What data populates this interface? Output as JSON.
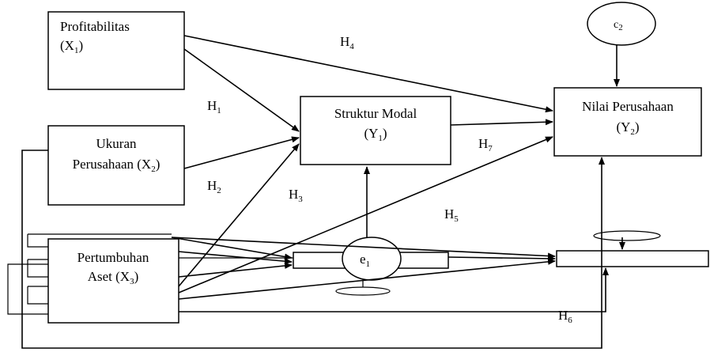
{
  "nodes": {
    "x1": {
      "name": "Profitabilitas",
      "var": "(X",
      "sub": "1",
      "close": ")"
    },
    "x2": {
      "name1": "Ukuran",
      "name2": "Perusahaan (X",
      "sub": "2",
      "close": ")"
    },
    "x3": {
      "name1": "Pertumbuhan",
      "name2": "Aset (X",
      "sub": "3",
      "close": ")"
    },
    "y1": {
      "name": "Struktur Modal",
      "var": "(Y",
      "sub": "1",
      "close": ")"
    },
    "y2": {
      "name": "Nilai Perusahaan",
      "var": "(Y",
      "sub": "2",
      "close": ")"
    },
    "e1": {
      "var": "e",
      "sub": "1"
    },
    "e2": {
      "var": "c",
      "sub": "2"
    }
  },
  "hypotheses": {
    "h1": {
      "var": "H",
      "sub": "1"
    },
    "h2": {
      "var": "H",
      "sub": "2"
    },
    "h3": {
      "var": "H",
      "sub": "3"
    },
    "h4": {
      "var": "H",
      "sub": "4"
    },
    "h5": {
      "var": "H",
      "sub": "5"
    },
    "h6": {
      "var": "H",
      "sub": "6"
    },
    "h7": {
      "var": "H",
      "sub": "7"
    }
  }
}
